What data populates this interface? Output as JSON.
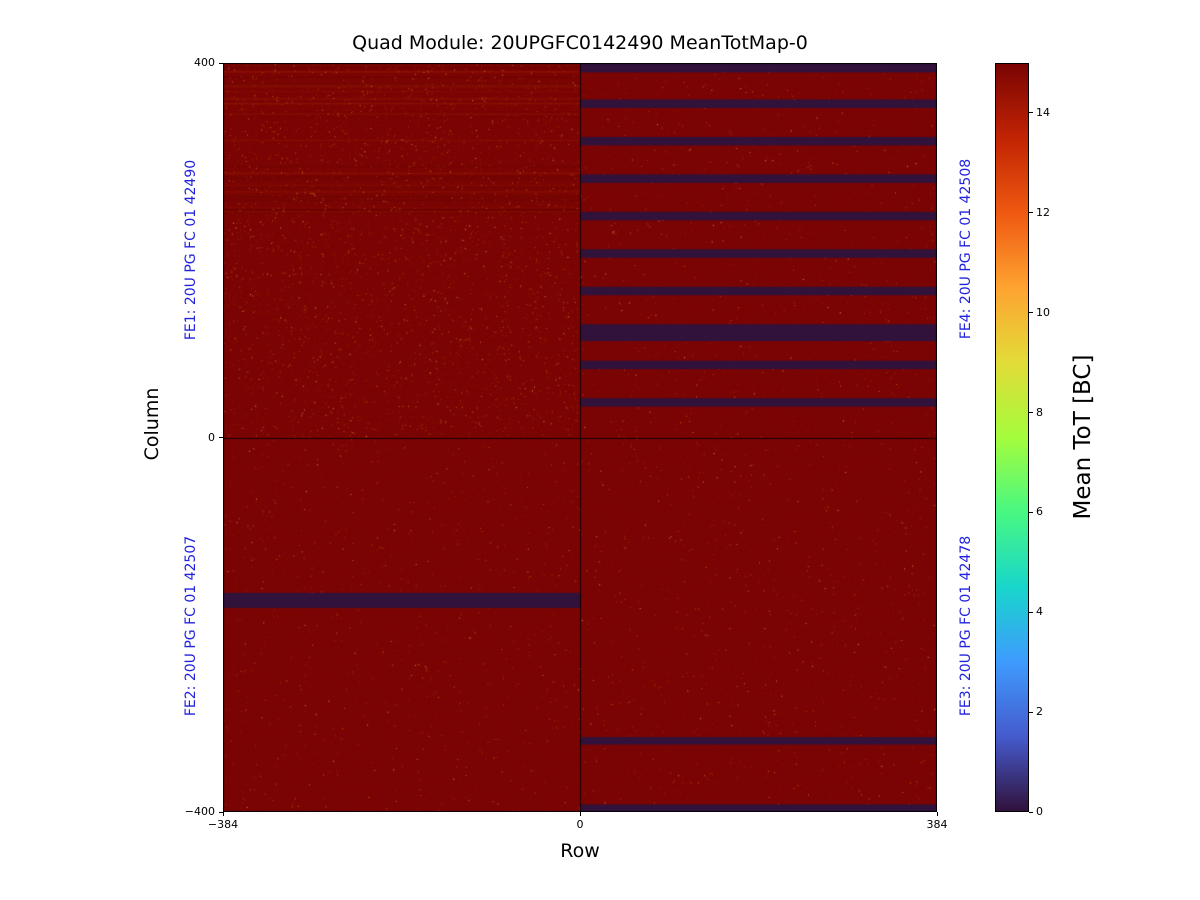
{
  "figure": {
    "background": "#ffffff"
  },
  "chart_data": {
    "type": "heatmap",
    "title": "Quad Module: 20UPGFC0142490 MeanTotMap-0",
    "xlabel": "Row",
    "ylabel": "Column",
    "xlim": [
      -384,
      384
    ],
    "ylim": [
      -400,
      400
    ],
    "xtick_values": [
      -384,
      0,
      384
    ],
    "xtick_labels": [
      "−384",
      "0",
      "384"
    ],
    "ytick_values": [
      400,
      0,
      -400
    ],
    "ytick_labels": [
      "400",
      "0",
      "−400"
    ],
    "base_value": 15,
    "base_color": "#7a0403",
    "dead_value": 0,
    "dead_color": "#30123b",
    "fe_label_color": "#2222dd",
    "quadrant_divider_color": "#000000",
    "fe_chips": [
      {
        "id": "FE1",
        "label": "FE1: 20U PG FC 01 42490",
        "position": "top-left"
      },
      {
        "id": "FE2",
        "label": "FE2: 20U PG FC 01 42507",
        "position": "bottom-left"
      },
      {
        "id": "FE4",
        "label": "FE4: 20U PG FC 01 42508",
        "position": "top-right"
      },
      {
        "id": "FE3",
        "label": "FE3: 20U PG FC 01 42478",
        "position": "bottom-right"
      }
    ],
    "dead_stripes": [
      {
        "fe": "FE4",
        "row": [
          0,
          384
        ],
        "col": [
          390,
          400
        ]
      },
      {
        "fe": "FE4",
        "row": [
          0,
          384
        ],
        "col": [
          352,
          361
        ]
      },
      {
        "fe": "FE4",
        "row": [
          0,
          384
        ],
        "col": [
          312,
          321
        ]
      },
      {
        "fe": "FE4",
        "row": [
          0,
          384
        ],
        "col": [
          272,
          281
        ]
      },
      {
        "fe": "FE4",
        "row": [
          0,
          384
        ],
        "col": [
          232,
          241
        ]
      },
      {
        "fe": "FE4",
        "row": [
          0,
          384
        ],
        "col": [
          192,
          201
        ]
      },
      {
        "fe": "FE4",
        "row": [
          0,
          384
        ],
        "col": [
          152,
          161
        ]
      },
      {
        "fe": "FE4",
        "row": [
          0,
          384
        ],
        "col": [
          103,
          121
        ]
      },
      {
        "fe": "FE4",
        "row": [
          0,
          384
        ],
        "col": [
          73,
          82
        ]
      },
      {
        "fe": "FE4",
        "row": [
          0,
          384
        ],
        "col": [
          33,
          42
        ]
      },
      {
        "fe": "FE2",
        "row": [
          -384,
          0
        ],
        "col": [
          -182,
          -166
        ]
      },
      {
        "fe": "FE3",
        "row": [
          0,
          384
        ],
        "col": [
          -328,
          -320
        ]
      },
      {
        "fe": "FE3",
        "row": [
          0,
          384
        ],
        "col": [
          -400,
          -392
        ]
      }
    ],
    "colorbar": {
      "label": "Mean ToT [BC]",
      "vmin": 0,
      "vmax": 15,
      "tick_values": [
        0,
        2,
        4,
        6,
        8,
        10,
        12,
        14
      ],
      "tick_labels": [
        "0",
        "2",
        "4",
        "6",
        "8",
        "10",
        "12",
        "14"
      ],
      "colormap": "turbo",
      "colormap_stops": [
        "#30123b",
        "#455bcd",
        "#3e9bfe",
        "#18d6cb",
        "#48f882",
        "#a4fc3c",
        "#e2dc38",
        "#fea331",
        "#ef5911",
        "#c22403",
        "#7a0403"
      ]
    }
  }
}
